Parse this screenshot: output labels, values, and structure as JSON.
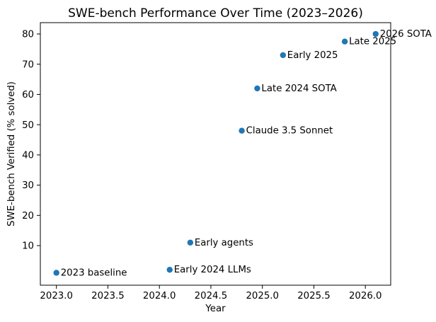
{
  "figure": {
    "background": "#ffffff",
    "spine_color": "#000000",
    "text_color": "#000000"
  },
  "chart_data": {
    "type": "scatter",
    "title": "SWE-bench Performance Over Time (2023–2026)",
    "xlabel": "Year",
    "ylabel": "SWE-bench Verified (% solved)",
    "xlim": [
      2022.844,
      2026.246
    ],
    "ylim": [
      -3.1,
      83.75
    ],
    "grid": false,
    "legend": "none",
    "marker_color": "#1f77b4",
    "x_ticks": [
      2023.0,
      2023.5,
      2024.0,
      2024.5,
      2025.0,
      2025.5,
      2026.0
    ],
    "x_tick_labels": [
      "2023.0",
      "2023.5",
      "2024.0",
      "2024.5",
      "2025.0",
      "2025.5",
      "2026.0"
    ],
    "y_ticks": [
      10,
      20,
      30,
      40,
      50,
      60,
      70,
      80
    ],
    "y_tick_labels": [
      "10",
      "20",
      "30",
      "40",
      "50",
      "60",
      "70",
      "80"
    ],
    "points": [
      {
        "x": 2023.0,
        "y": 1,
        "label": "2023 baseline"
      },
      {
        "x": 2024.1,
        "y": 2,
        "label": "Early 2024 LLMs"
      },
      {
        "x": 2024.3,
        "y": 11,
        "label": "Early agents"
      },
      {
        "x": 2024.8,
        "y": 48,
        "label": "Claude 3.5 Sonnet"
      },
      {
        "x": 2024.95,
        "y": 62,
        "label": "Late 2024 SOTA"
      },
      {
        "x": 2025.2,
        "y": 73,
        "label": "Early 2025"
      },
      {
        "x": 2025.8,
        "y": 77.5,
        "label": "Late 2025"
      },
      {
        "x": 2026.1,
        "y": 80,
        "label": "2026 SOTA"
      }
    ]
  }
}
